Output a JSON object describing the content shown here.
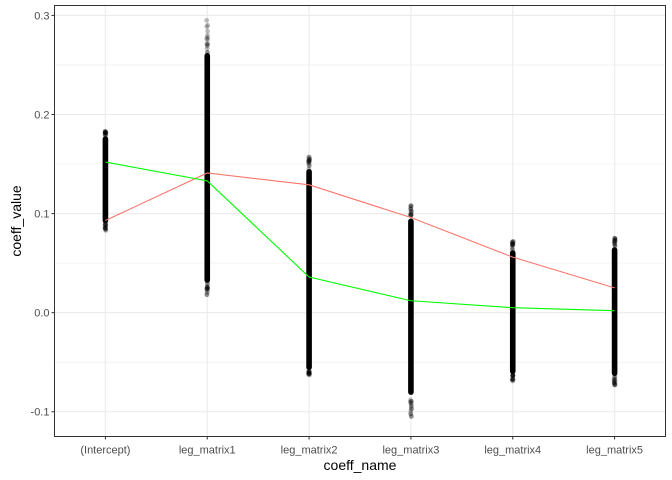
{
  "chart_data": {
    "type": "scatter",
    "xlabel": "coeff_name",
    "ylabel": "coeff_value",
    "categories": [
      "(Intercept)",
      "leg_matrix1",
      "leg_matrix2",
      "leg_matrix3",
      "leg_matrix4",
      "leg_matrix5"
    ],
    "ylim": [
      -0.125,
      0.31
    ],
    "yticks": [
      -0.1,
      0.0,
      0.1,
      0.2,
      0.3
    ],
    "ytick_labels": [
      "-0.1",
      "0.0",
      "0.1",
      "0.2",
      "0.3"
    ],
    "grid": true,
    "point_ranges": [
      {
        "category": "(Intercept)",
        "min": 0.083,
        "max": 0.183,
        "dense_min": 0.09,
        "dense_max": 0.178
      },
      {
        "category": "leg_matrix1",
        "min": 0.018,
        "max": 0.295,
        "dense_min": 0.03,
        "dense_max": 0.262
      },
      {
        "category": "leg_matrix2",
        "min": -0.063,
        "max": 0.157,
        "dense_min": -0.058,
        "dense_max": 0.145
      },
      {
        "category": "leg_matrix3",
        "min": -0.105,
        "max": 0.108,
        "dense_min": -0.083,
        "dense_max": 0.095
      },
      {
        "category": "leg_matrix4",
        "min": -0.069,
        "max": 0.072,
        "dense_min": -0.062,
        "dense_max": 0.063
      },
      {
        "category": "leg_matrix5",
        "min": -0.073,
        "max": 0.075,
        "dense_min": -0.064,
        "dense_max": 0.066
      }
    ],
    "series": [
      {
        "color": "#f8766d",
        "values": [
          0.093,
          0.141,
          0.129,
          0.096,
          0.056,
          0.025
        ]
      },
      {
        "color": "#00ff00",
        "values": [
          0.152,
          0.133,
          0.036,
          0.012,
          0.005,
          0.002
        ]
      }
    ],
    "point_color": "#000000"
  }
}
